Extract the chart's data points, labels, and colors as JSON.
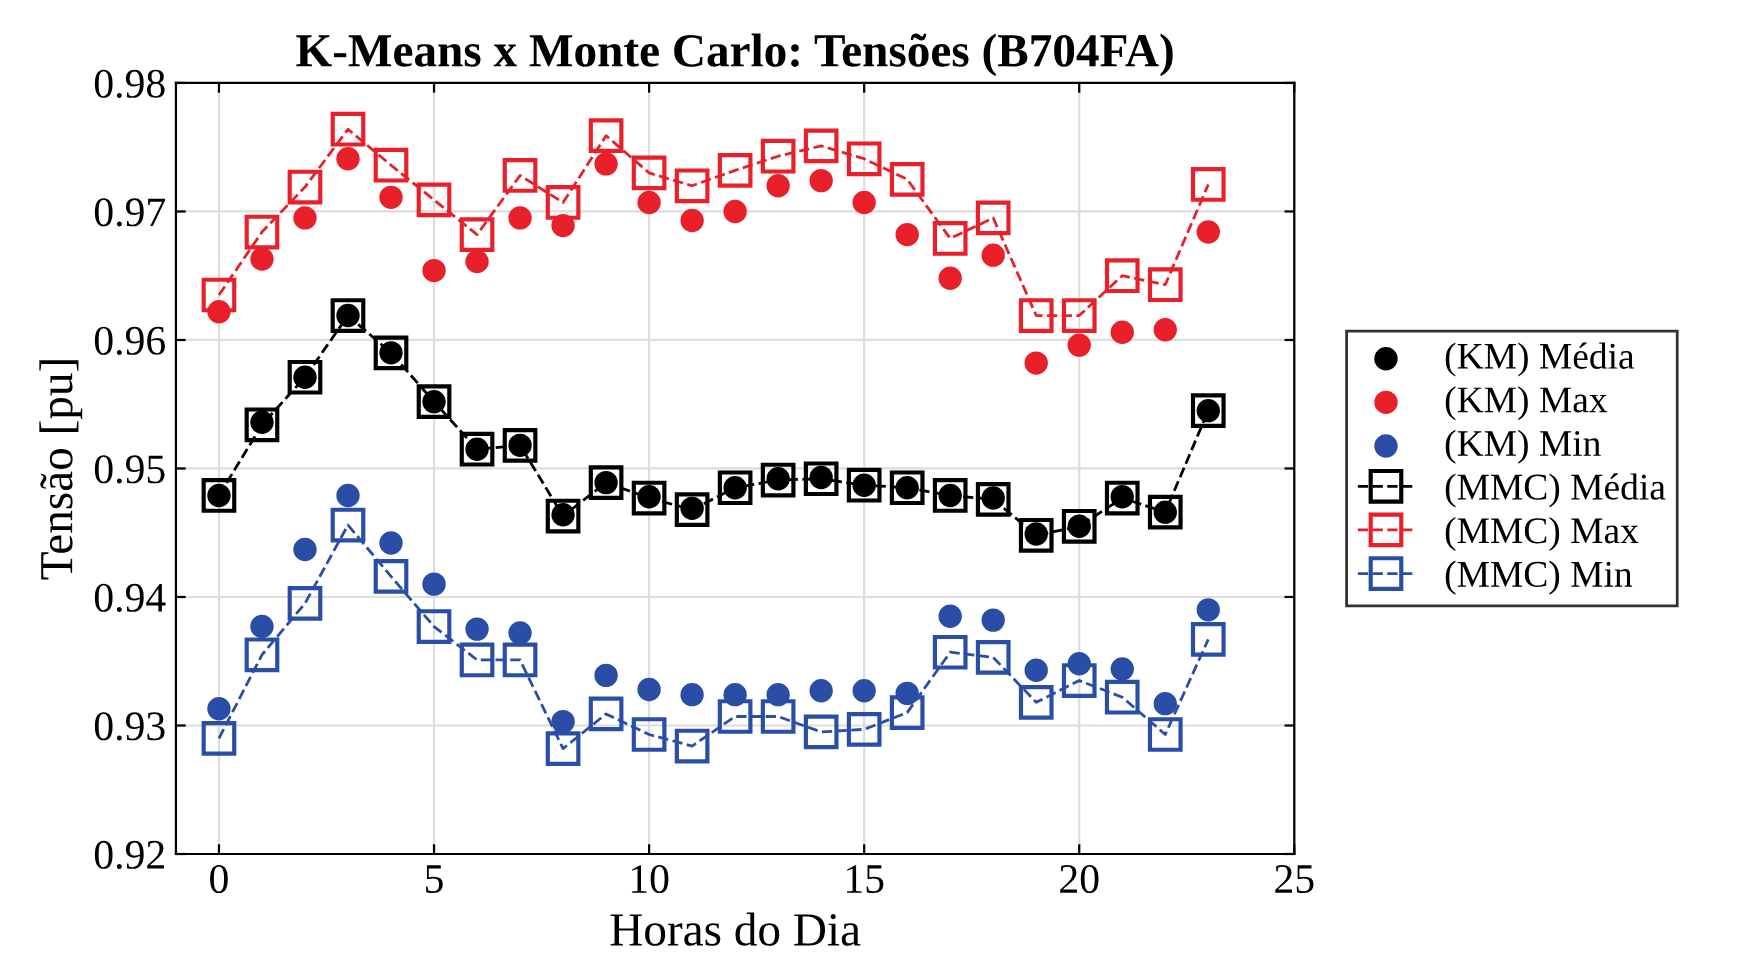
{
  "chart_data": {
    "type": "scatter",
    "title": "K-Means x Monte Carlo: Tensões (B704FA)",
    "xlabel": "Horas do Dia",
    "ylabel": "Tensão [pu]",
    "x": [
      0,
      1,
      2,
      3,
      4,
      5,
      6,
      7,
      8,
      9,
      10,
      11,
      12,
      13,
      14,
      15,
      16,
      17,
      18,
      19,
      20,
      21,
      22,
      23
    ],
    "xlim": [
      -1,
      25
    ],
    "xticks": [
      0,
      5,
      10,
      15,
      20,
      25
    ],
    "ylim": [
      0.92,
      0.98
    ],
    "yticks": [
      0.92,
      0.93,
      0.94,
      0.95,
      0.96,
      0.97,
      0.98
    ],
    "grid": true,
    "legend": "right",
    "series": [
      {
        "name": "(KM) Média",
        "marker": "circle",
        "color": "#000000",
        "values": [
          0.9479,
          0.9536,
          0.9571,
          0.9619,
          0.959,
          0.9552,
          0.9515,
          0.9518,
          0.9464,
          0.9489,
          0.9478,
          0.9469,
          0.9485,
          0.9492,
          0.9493,
          0.9487,
          0.9485,
          0.9479,
          0.9477,
          0.9449,
          0.9455,
          0.9478,
          0.9466,
          0.9545
        ]
      },
      {
        "name": "(KM) Max",
        "marker": "circle",
        "color": "#e8202a",
        "values": [
          0.9622,
          0.9663,
          0.9695,
          0.9741,
          0.9711,
          0.9654,
          0.9661,
          0.9695,
          0.9689,
          0.9737,
          0.9707,
          0.9693,
          0.97,
          0.972,
          0.9724,
          0.9707,
          0.9682,
          0.9648,
          0.9666,
          0.9582,
          0.9596,
          0.9606,
          0.9608,
          0.9684
        ]
      },
      {
        "name": "(KM) Min",
        "marker": "circle",
        "color": "#2a4ea6",
        "values": [
          0.9313,
          0.9377,
          0.9437,
          0.9479,
          0.9442,
          0.941,
          0.9375,
          0.9372,
          0.9303,
          0.9339,
          0.9328,
          0.9324,
          0.9324,
          0.9324,
          0.9327,
          0.9327,
          0.9325,
          0.9385,
          0.9382,
          0.9343,
          0.9348,
          0.9344,
          0.9317,
          0.939
        ]
      },
      {
        "name": "(MMC) Média",
        "type": "line",
        "marker": "square",
        "line_style": "dashed",
        "color": "#000000",
        "values": [
          0.9479,
          0.9534,
          0.9571,
          0.9619,
          0.959,
          0.9552,
          0.9515,
          0.9518,
          0.9463,
          0.9489,
          0.9477,
          0.9468,
          0.9485,
          0.9491,
          0.9492,
          0.9487,
          0.9485,
          0.9479,
          0.9476,
          0.9448,
          0.9455,
          0.9477,
          0.9466,
          0.9545
        ]
      },
      {
        "name": "(MMC) Max",
        "type": "line",
        "marker": "square",
        "line_style": "dashed",
        "color": "#e8202a",
        "values": [
          0.9635,
          0.9684,
          0.9719,
          0.9764,
          0.9736,
          0.9709,
          0.9682,
          0.9728,
          0.9707,
          0.9759,
          0.973,
          0.972,
          0.9732,
          0.9743,
          0.9751,
          0.9741,
          0.9725,
          0.9679,
          0.9695,
          0.9619,
          0.9619,
          0.965,
          0.9643,
          0.9721
        ]
      },
      {
        "name": "(MMC) Min",
        "type": "line",
        "marker": "square",
        "line_style": "dashed",
        "color": "#2a4ea6",
        "values": [
          0.929,
          0.9355,
          0.9395,
          0.9456,
          0.9416,
          0.9377,
          0.9351,
          0.9351,
          0.9282,
          0.9309,
          0.9293,
          0.9284,
          0.9307,
          0.9307,
          0.9295,
          0.9297,
          0.931,
          0.9357,
          0.9353,
          0.9318,
          0.9335,
          0.9322,
          0.9293,
          0.9367
        ]
      }
    ]
  }
}
